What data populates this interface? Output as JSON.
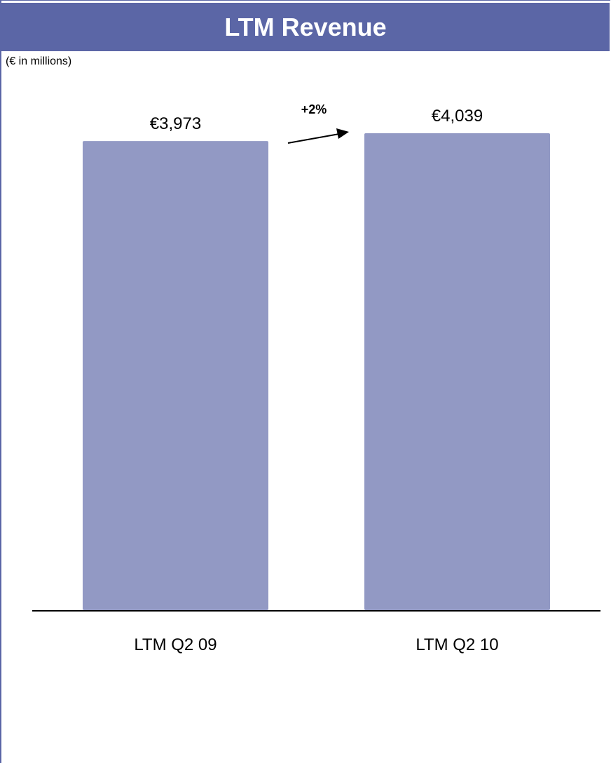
{
  "header": {
    "title": "LTM Revenue"
  },
  "units_note": "(€ in millions)",
  "colors": {
    "header_bg": "#5b66a6",
    "bar_fill": "#9299c4",
    "axis": "#000000"
  },
  "growth": {
    "label": "+2%"
  },
  "chart_data": {
    "type": "bar",
    "title": "LTM Revenue",
    "subtitle": "(€ in millions)",
    "categories": [
      "LTM Q2 09",
      "LTM Q2 10"
    ],
    "values": [
      3973,
      4039
    ],
    "data_labels": [
      "€3,973",
      "€4,039"
    ],
    "xlabel": "",
    "ylabel": "",
    "ylim": [
      0,
      4300
    ],
    "grid": false,
    "legend": "none",
    "annotations": [
      "+2%"
    ]
  }
}
